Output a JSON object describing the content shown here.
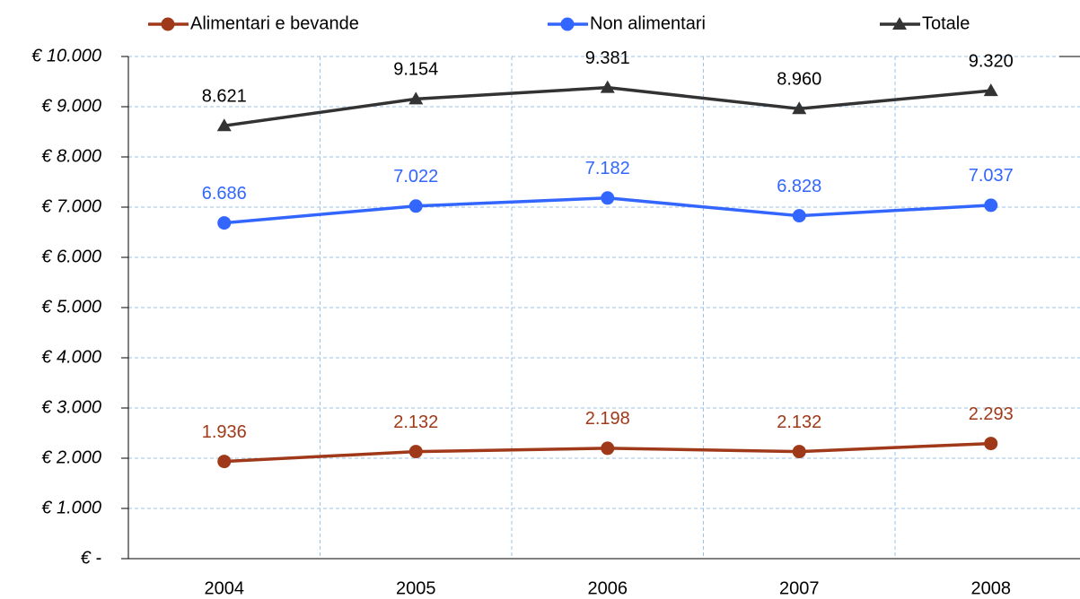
{
  "chart_data": {
    "type": "line",
    "categories": [
      "2004",
      "2005",
      "2006",
      "2007",
      "2008"
    ],
    "series": [
      {
        "name": "Alimentari e bevande",
        "color": "#a0391a",
        "marker": "circle",
        "values": [
          1936,
          2132,
          2198,
          2132,
          2293
        ],
        "value_labels": [
          "1.936",
          "2.132",
          "2.198",
          "2.132",
          "2.293"
        ]
      },
      {
        "name": "Non alimentari",
        "color": "#3366ff",
        "marker": "circle",
        "values": [
          6686,
          7022,
          7182,
          6828,
          7037
        ],
        "value_labels": [
          "6.686",
          "7.022",
          "7.182",
          "6.828",
          "7.037"
        ]
      },
      {
        "name": "Totale",
        "color": "#333333",
        "marker": "triangle",
        "values": [
          8621,
          9154,
          9381,
          8960,
          9320
        ],
        "value_labels": [
          "8.621",
          "9.154",
          "9.381",
          "8.960",
          "9.320"
        ]
      }
    ],
    "ylim": [
      0,
      10000
    ],
    "yticks": [
      {
        "value": 0,
        "label": "€ -"
      },
      {
        "value": 1000,
        "label": "€ 1.000"
      },
      {
        "value": 2000,
        "label": "€ 2.000"
      },
      {
        "value": 3000,
        "label": "€ 3.000"
      },
      {
        "value": 4000,
        "label": "€ 4.000"
      },
      {
        "value": 5000,
        "label": "€ 5.000"
      },
      {
        "value": 6000,
        "label": "€ 6.000"
      },
      {
        "value": 7000,
        "label": "€ 7.000"
      },
      {
        "value": 8000,
        "label": "€ 8.000"
      },
      {
        "value": 9000,
        "label": "€ 9.000"
      },
      {
        "value": 10000,
        "label": "€ 10.000"
      }
    ],
    "grid": true,
    "legend": "top"
  }
}
